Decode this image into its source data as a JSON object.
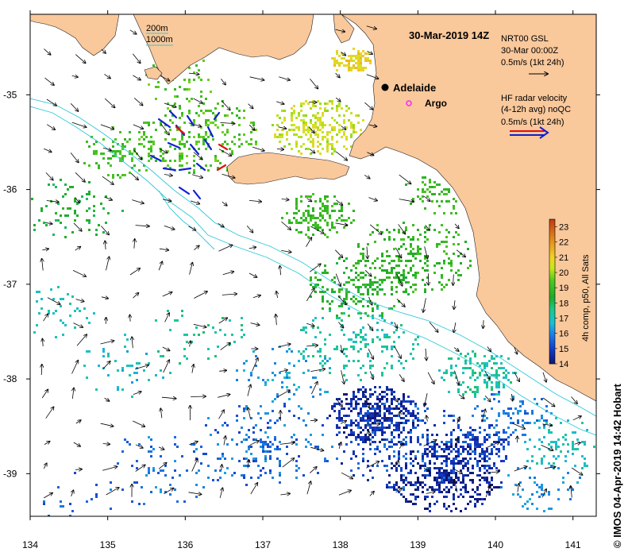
{
  "title": "30-Mar-2019 14Z",
  "colorbar": {
    "label": "4h comp, p50, All Sats",
    "ticks": [
      "14",
      "15",
      "16",
      "17",
      "18",
      "19",
      "20",
      "21",
      "22",
      "23"
    ],
    "min": 14,
    "max": 23.5
  },
  "x_ticks": [
    "134",
    "135",
    "136",
    "137",
    "138",
    "139",
    "140",
    "141"
  ],
  "y_ticks": [
    "-35",
    "-36",
    "-37",
    "-38",
    "-39"
  ],
  "x_range": [
    134,
    141.3
  ],
  "y_range": [
    -34.15,
    -39.45
  ],
  "legend_gsl": {
    "line1": "NRT00 GSL",
    "line2": "30-Mar 00:00Z",
    "line3": "0.5m/s (1kt 24h)"
  },
  "legend_radar": {
    "line1": "HF radar velocity",
    "line2": "(4-12h avg) noQC",
    "line3": "0.5m/s (1kt 24h)"
  },
  "isobath_legend": {
    "depth1": "200m",
    "depth2": "1000m"
  },
  "places": [
    {
      "name": "Adelaide",
      "lon": 138.6,
      "lat": -34.93
    },
    {
      "name": "Argo",
      "lon": 138.77,
      "lat": -35.03
    }
  ],
  "credit": "© IMOS 04-Apr-2019 14:42 Hobart",
  "colors": {
    "land": "#f9c89b",
    "isobath": "#2ec8d8",
    "marker": "#000000",
    "argo": "#ff22ff",
    "radar_red": "#e21010",
    "radar_blue": "#1020d0"
  }
}
